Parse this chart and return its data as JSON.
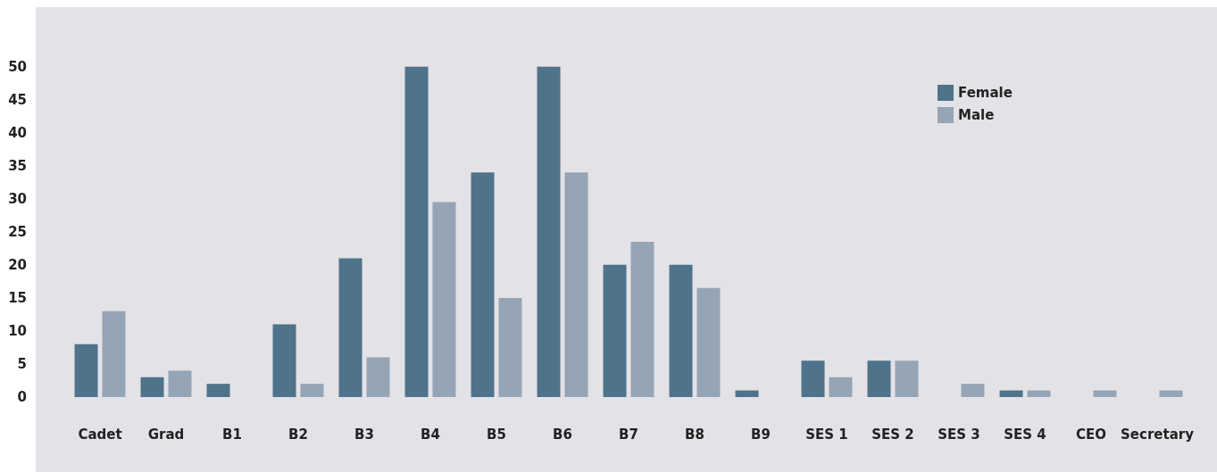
{
  "chart_data": {
    "type": "bar",
    "categories": [
      "Cadet",
      "Grad",
      "B1",
      "B2",
      "B3",
      "B4",
      "B5",
      "B6",
      "B7",
      "B8",
      "B9",
      "SES 1",
      "SES 2",
      "SES 3",
      "SES 4",
      "CEO",
      "Secretary"
    ],
    "series": [
      {
        "name": "Female",
        "color": "#4e738a",
        "values": [
          8,
          3,
          2,
          11,
          21,
          50,
          34,
          50,
          20,
          20,
          1,
          5.5,
          5.5,
          null,
          1,
          null,
          null
        ]
      },
      {
        "name": "Male",
        "color": "#96a5b5",
        "values": [
          13,
          4,
          null,
          2,
          6,
          29.5,
          15,
          34,
          23.5,
          16.5,
          null,
          3,
          5.5,
          2,
          1,
          1,
          1
        ]
      }
    ],
    "ylim": [
      0,
      59
    ],
    "yticks": [
      0,
      5,
      10,
      15,
      20,
      25,
      30,
      35,
      40,
      45,
      50
    ],
    "grid": false,
    "legend": "top right"
  }
}
